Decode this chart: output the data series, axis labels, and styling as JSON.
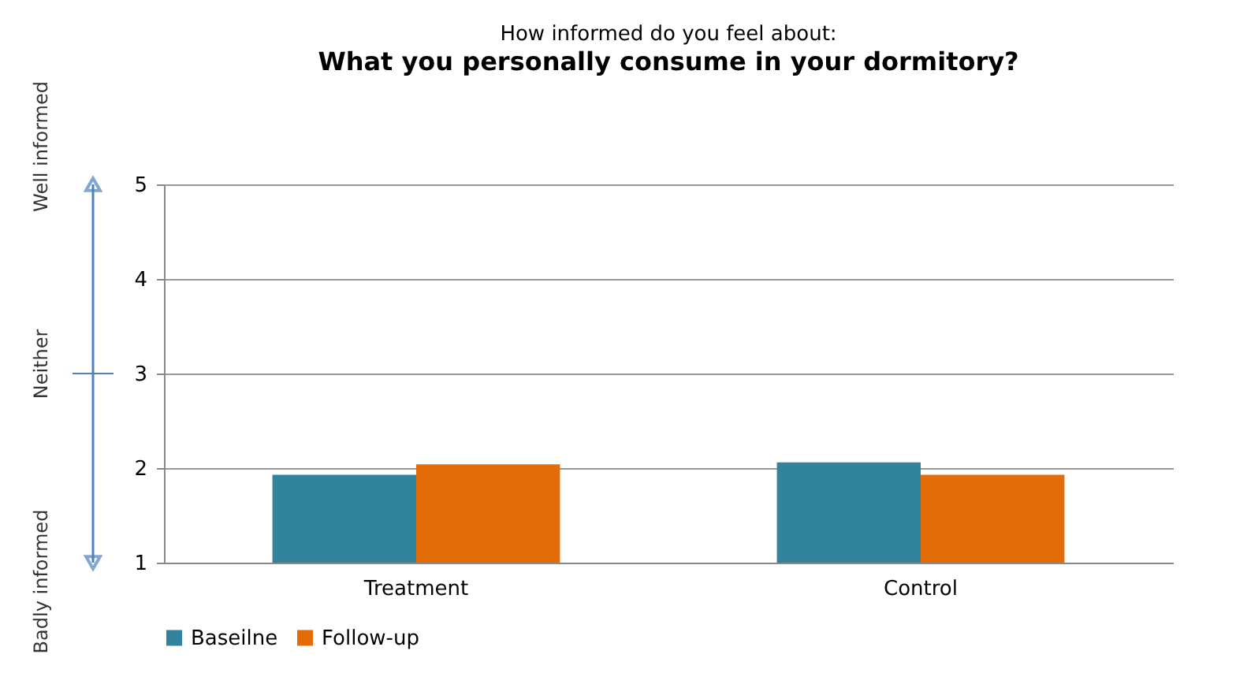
{
  "chart_data": {
    "type": "bar",
    "title": "How informed do you feel about:",
    "subtitle": "What you personally consume in your dormitory?",
    "categories": [
      "Treatment",
      "Control"
    ],
    "series": [
      {
        "name": "Baseilne",
        "color": "#31849b",
        "values": [
          1.93,
          2.06
        ]
      },
      {
        "name": "Follow-up",
        "color": "#e36c09",
        "values": [
          2.04,
          1.93
        ]
      }
    ],
    "ylim": [
      1,
      5
    ],
    "yticks": [
      1,
      2,
      3,
      4,
      5
    ],
    "grid": "y",
    "legend": "bottom",
    "annotations": [
      "Well informed",
      "Neither",
      "Badly informed"
    ]
  }
}
